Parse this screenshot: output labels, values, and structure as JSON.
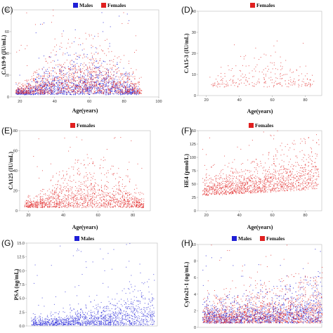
{
  "colors": {
    "males": "#1f1fd6",
    "females": "#e02020"
  },
  "chart_data": [
    {
      "type": "scatter",
      "panel": "(C)",
      "xlabel": "Age(years)",
      "ylabel": "CA19-9 (IU/mL)",
      "xlim": [
        15,
        100
      ],
      "ylim": [
        0,
        80
      ],
      "xticks": [
        "20",
        "40",
        "60",
        "80",
        "100"
      ],
      "xtick_values": [
        20,
        40,
        60,
        80,
        100
      ],
      "yticks": [
        "0",
        "20",
        "40",
        "60",
        "80"
      ],
      "ytick_values": [
        0,
        20,
        40,
        60,
        80
      ],
      "legend_position": "top",
      "series": [
        {
          "name": "Males",
          "color": "#1f1fd6",
          "age_range": [
            18,
            88
          ],
          "density": "high",
          "band_low": 2,
          "band_high": 28,
          "outlier_max": 80
        },
        {
          "name": "Females",
          "color": "#e02020",
          "age_range": [
            18,
            90
          ],
          "density": "high",
          "band_low": 3,
          "band_high": 38,
          "outlier_max": 85
        }
      ]
    },
    {
      "type": "scatter",
      "panel": "(D)",
      "xlabel": "Age(years)",
      "ylabel": "CA15-3 (IU/mL)",
      "xlim": [
        15,
        90
      ],
      "ylim": [
        0,
        40
      ],
      "xticks": [
        "20",
        "40",
        "60",
        "80"
      ],
      "xtick_values": [
        20,
        40,
        60,
        80
      ],
      "yticks": [
        "0",
        "10",
        "20",
        "30",
        "40"
      ],
      "ytick_values": [
        0,
        10,
        20,
        30,
        40
      ],
      "legend_position": "top",
      "series": [
        {
          "name": "Females",
          "color": "#e02020",
          "age_range": [
            22,
            85
          ],
          "density": "low",
          "band_low": 4,
          "band_high": 18,
          "outlier_max": 26
        }
      ]
    },
    {
      "type": "scatter",
      "panel": "(E)",
      "xlabel": "Age(years)",
      "ylabel": "CA125 (IU/mL)",
      "xlim": [
        15,
        90
      ],
      "ylim": [
        0,
        80
      ],
      "xticks": [
        "20",
        "40",
        "60",
        "80"
      ],
      "xtick_values": [
        20,
        40,
        60,
        80
      ],
      "yticks": [
        "0",
        "20",
        "40",
        "60",
        "80"
      ],
      "ytick_values": [
        0,
        20,
        40,
        60,
        80
      ],
      "legend_position": "top",
      "series": [
        {
          "name": "Females",
          "color": "#e02020",
          "age_range": [
            18,
            86
          ],
          "density": "high",
          "band_low": 3,
          "band_high": 35,
          "outlier_max": 80
        }
      ]
    },
    {
      "type": "scatter",
      "panel": "(F)",
      "xlabel": "Age(years)",
      "ylabel": "HE4 (pmol/L)",
      "xlim": [
        15,
        90
      ],
      "ylim": [
        0,
        150
      ],
      "xticks": [
        "20",
        "40",
        "60",
        "80"
      ],
      "xtick_values": [
        20,
        40,
        60,
        80
      ],
      "yticks": [
        "0",
        "25",
        "50",
        "75",
        "100",
        "125",
        "150"
      ],
      "ytick_values": [
        0,
        25,
        50,
        75,
        100,
        125,
        150
      ],
      "legend_position": "top",
      "series": [
        {
          "name": "Females",
          "color": "#e02020",
          "age_range": [
            18,
            88
          ],
          "density": "high",
          "band_low_start": 28,
          "band_high_start": 65,
          "band_low_end": 40,
          "band_high_end": 120,
          "outlier_max": 150
        }
      ]
    },
    {
      "type": "scatter",
      "panel": "(G)",
      "xlabel": "",
      "ylabel": "PSA (ng/mL)",
      "xlim": [
        15,
        90
      ],
      "ylim": [
        0,
        15
      ],
      "xticks": [],
      "xtick_values": [],
      "yticks": [
        "0.0",
        "2.5",
        "5.0",
        "7.5",
        "10.0",
        "12.5",
        "15.0"
      ],
      "ytick_values": [
        0,
        2.5,
        5,
        7.5,
        10,
        12.5,
        15
      ],
      "legend_position": "top",
      "series": [
        {
          "name": "Males",
          "color": "#1f1fd6",
          "age_range": [
            18,
            88
          ],
          "density": "high",
          "band_low": 0.1,
          "band_high_start": 1.5,
          "band_high_end": 6,
          "outlier_max": 15
        }
      ]
    },
    {
      "type": "scatter",
      "panel": "(H)",
      "xlabel": "",
      "ylabel": "Cyfra21-1 (ng/mL)",
      "xlim": [
        15,
        90
      ],
      "ylim": [
        0,
        10
      ],
      "xticks": [],
      "xtick_values": [],
      "yticks": [
        "0",
        "2",
        "4",
        "6",
        "8",
        "10"
      ],
      "ytick_values": [
        0,
        2,
        4,
        6,
        8,
        10
      ],
      "legend_position": "top",
      "series": [
        {
          "name": "Males",
          "color": "#1f1fd6",
          "age_range": [
            18,
            90
          ],
          "density": "high",
          "band_low": 0.5,
          "band_high_start": 2.5,
          "band_high_end": 4.5,
          "outlier_max": 10
        },
        {
          "name": "Females",
          "color": "#e02020",
          "age_range": [
            18,
            90
          ],
          "density": "high",
          "band_low": 0.5,
          "band_high_start": 3,
          "band_high_end": 5,
          "outlier_max": 10
        }
      ]
    }
  ]
}
